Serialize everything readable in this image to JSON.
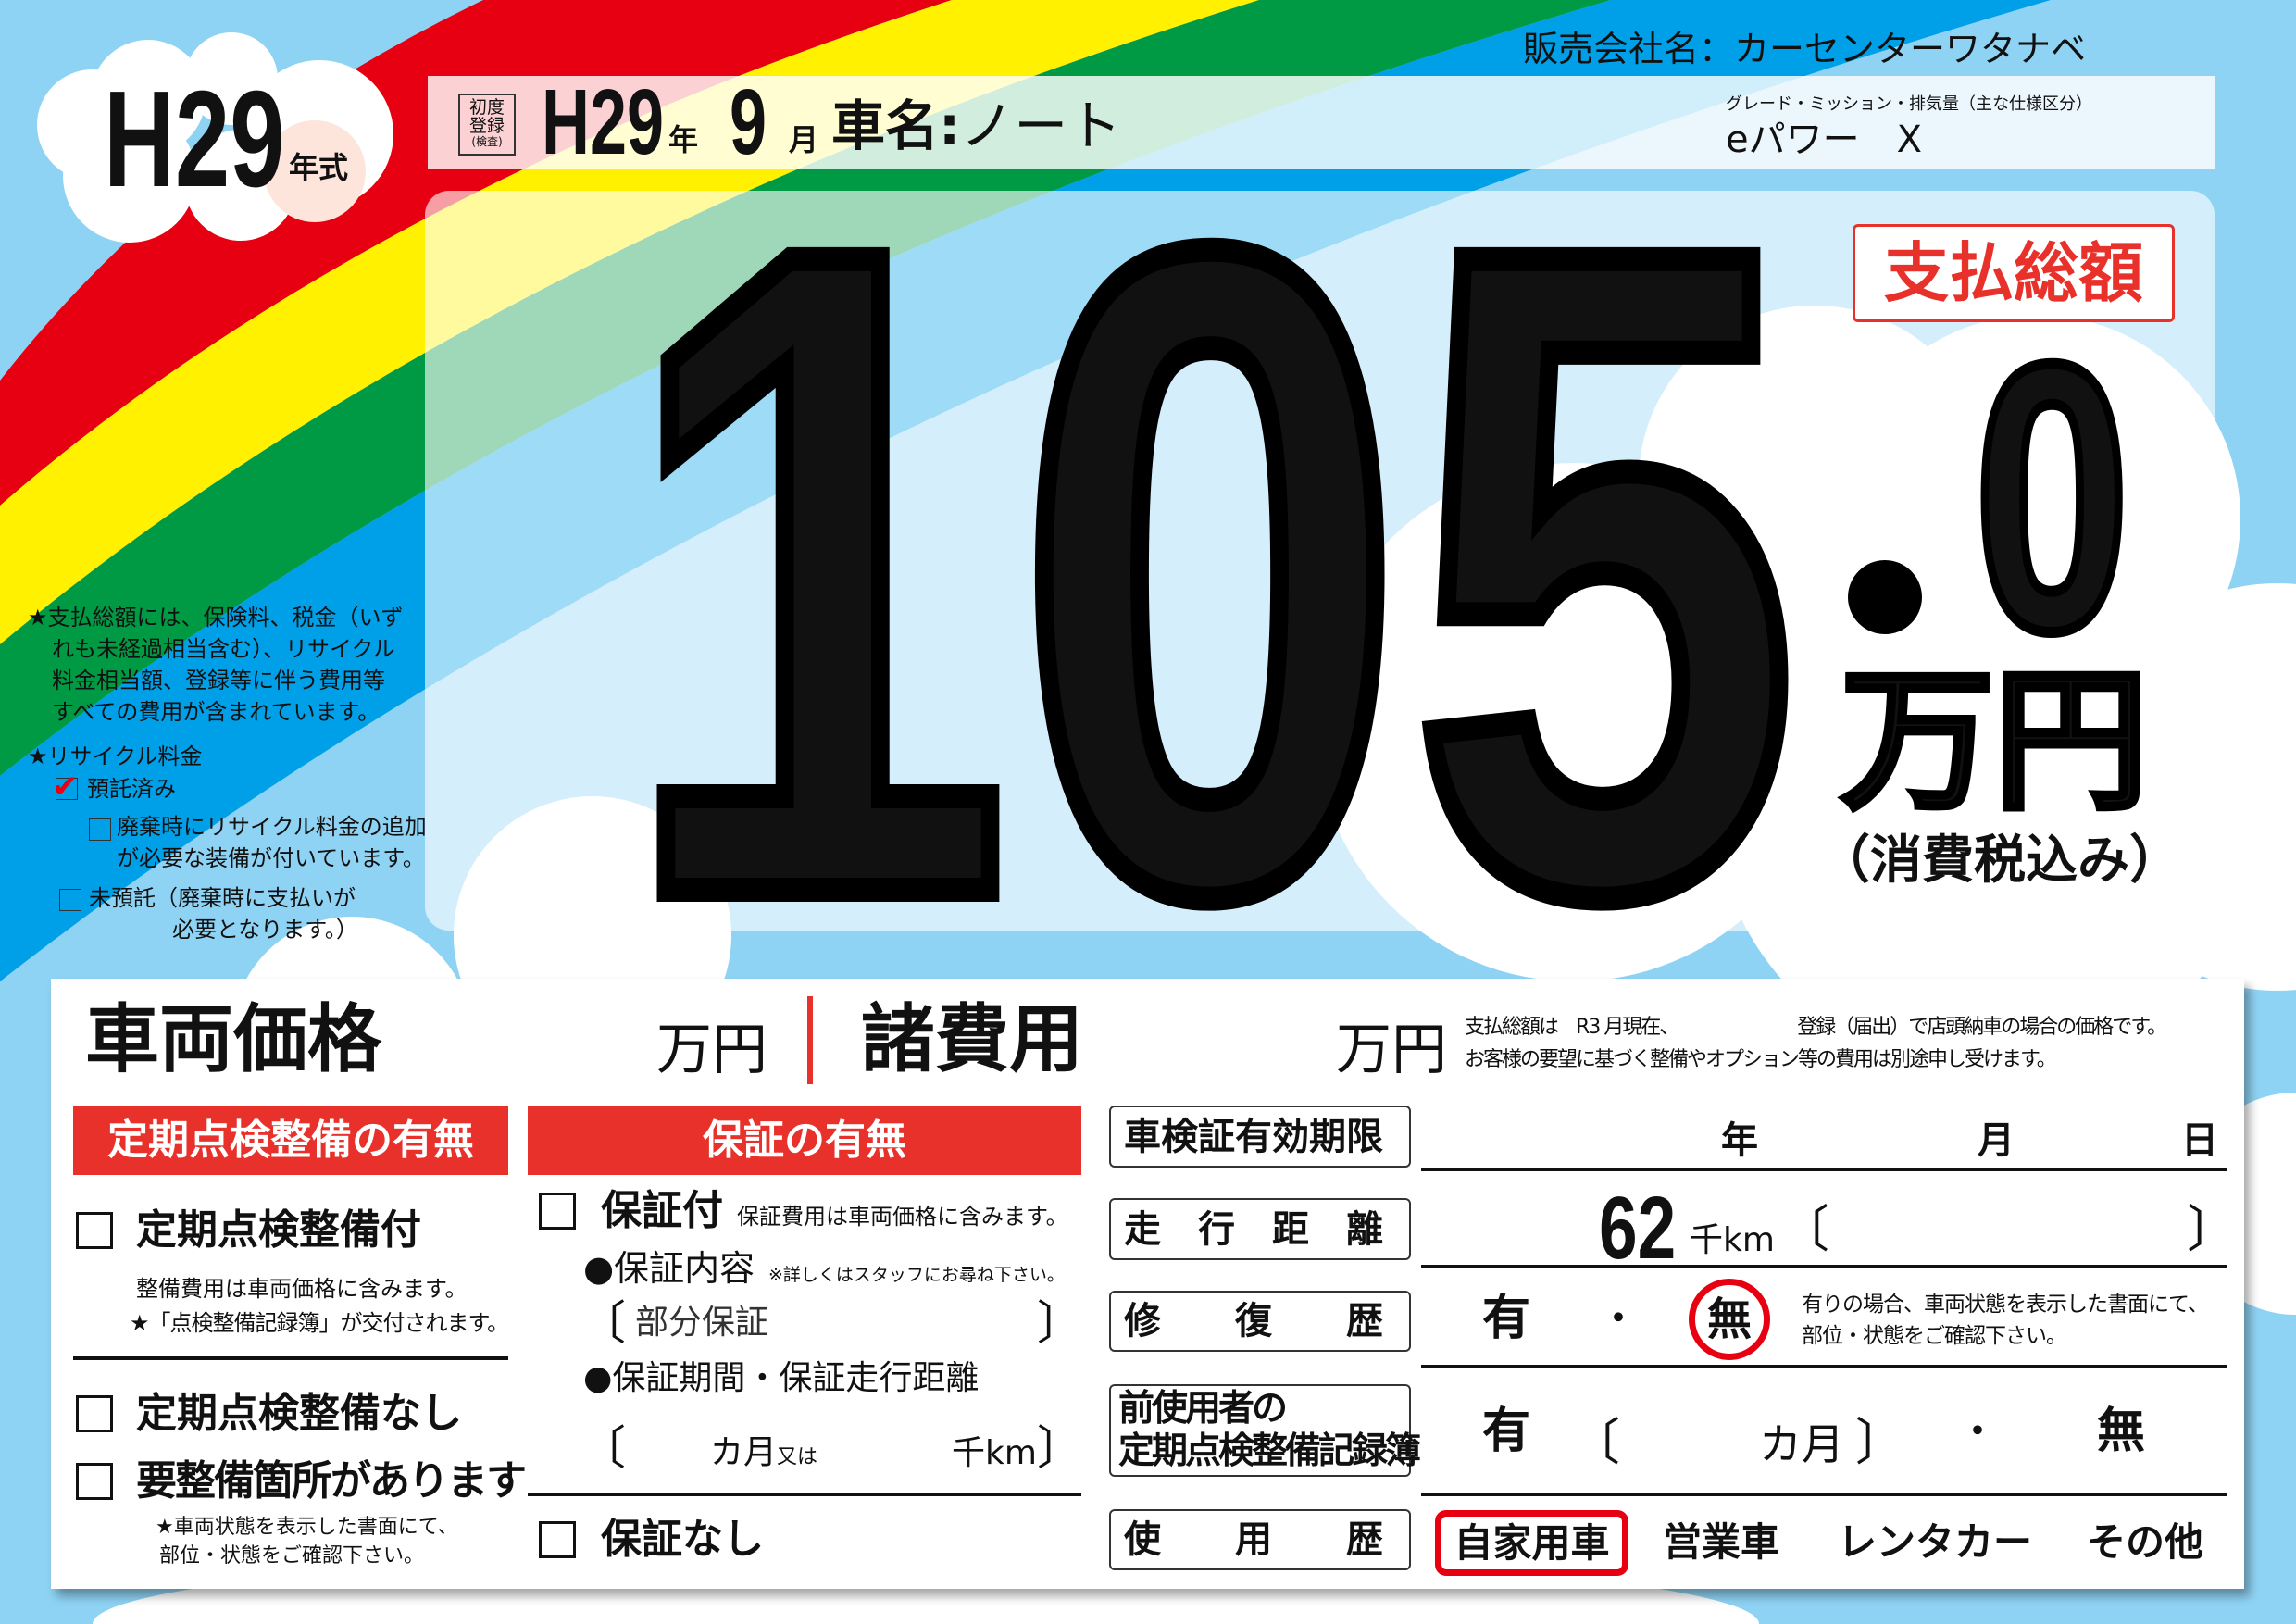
{
  "colors": {
    "sky": "#8fd3f4",
    "red": "#e60012",
    "yellow": "#fff100",
    "green": "#009944",
    "blue": "#00a0e9",
    "accent_red": "#e8312a"
  },
  "company": {
    "label": "販売会社名：",
    "name": "カーセンターワタナベ"
  },
  "model_year": {
    "value": "H29",
    "suffix": "年式"
  },
  "header": {
    "first_reg_label": [
      "初度",
      "登録",
      "(検査)"
    ],
    "year": "H29",
    "year_unit": "年",
    "month": "9",
    "month_unit": "月",
    "car_name_label": "車名:",
    "car_name": "ノート",
    "grade_label": "グレード・ミッション・排気量（主な仕様区分）",
    "grade": "eパワー　X"
  },
  "price": {
    "badge": "支払総額",
    "integer": "105",
    "decimal": "0",
    "unit": "万円",
    "tax_note": "（消費税込み）"
  },
  "notes": {
    "total_note": [
      "★支払総額には、保険料、税金（いず",
      "れも未経過相当含む）、リサイクル",
      "料金相当額、登録等に伴う費用等",
      "すべての費用が含まれています。"
    ],
    "recycle_title": "★リサイクル料金",
    "recycle_options": [
      {
        "label": "預託済み",
        "checked": true
      },
      {
        "label": "廃棄時にリサイクル料金の追加",
        "label2": "が必要な装備が付いています。",
        "checked": false
      },
      {
        "label": "未預託（廃棄時に支払いが",
        "label2": "必要となります。）",
        "checked": false
      }
    ]
  },
  "table": {
    "vehicle_price_label": "車両価格",
    "vehicle_price_unit": "万円",
    "fees_label": "諸費用",
    "fees_unit": "万円",
    "footnote": [
      "支払総額は　R3 月現在、　　　　　　　登録（届出）で店頭納車の場合の価格です。",
      "お客様の要望に基づく整備やオプション等の費用は別途申し受けます。"
    ],
    "inspection": {
      "header": "定期点検整備の有無",
      "with": "定期点検整備付",
      "with_notes": [
        "整備費用は車両価格に含みます。",
        "★「点検整備記録簿」が交付されます。"
      ],
      "without": "定期点検整備なし",
      "needs_repair": "要整備箇所があります",
      "repair_notes": [
        "★車両状態を表示した書面にて、",
        "部位・状態をご確認下さい。"
      ]
    },
    "warranty": {
      "header": "保証の有無",
      "with": "保証付",
      "with_note": "保証費用は車両価格に含みます。",
      "content_label": "●保証内容",
      "content_note": "※詳しくはスタッフにお尋ね下さい。",
      "content_value": "部分保証",
      "period_label": "●保証期間・保証走行距離",
      "months_unit": "カ月",
      "or": "又は",
      "km_unit": "千km",
      "without": "保証なし"
    },
    "details": {
      "inspection_expiry": {
        "label": "車検証有効期限",
        "year": "年",
        "month": "月",
        "day": "日"
      },
      "mileage": {
        "label": "走　行　距　離",
        "value": "62",
        "unit": "千km"
      },
      "repair_history": {
        "label": "修　　復　　歴",
        "yes": "有",
        "sep": "・",
        "no": "無",
        "selected": "無",
        "note": [
          "有りの場合、車両状態を表示した書面にて、",
          "部位・状態をご確認下さい。"
        ]
      },
      "maintenance_record": {
        "label": [
          "前使用者の",
          "定期点検整備記録簿"
        ],
        "yes": "有",
        "months": "カ月",
        "sep": "・",
        "no": "無"
      },
      "usage_history": {
        "label": "使　　用　　歴",
        "options": [
          "自家用車",
          "営業車",
          "レンタカー",
          "その他"
        ],
        "selected": "自家用車"
      }
    }
  }
}
